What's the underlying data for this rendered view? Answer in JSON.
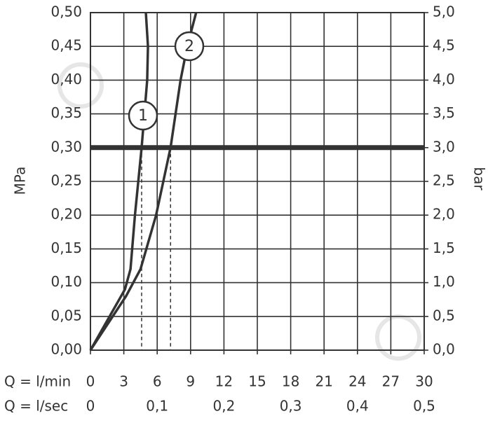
{
  "chart_data": {
    "type": "line",
    "y_label": "MPa",
    "y2_label": "bar",
    "x_label": "Q = l/min",
    "x2_label": "Q = l/sec",
    "xlim": [
      0,
      30
    ],
    "xticks": [
      0,
      3,
      6,
      9,
      12,
      15,
      18,
      21,
      24,
      27,
      30
    ],
    "x2lim": [
      0,
      0.5
    ],
    "x2ticks": [
      0,
      {
        "value": 0.1,
        "label": "0,1"
      },
      {
        "value": 0.2,
        "label": "0,2"
      },
      {
        "value": 0.3,
        "label": "0,3"
      },
      {
        "value": 0.4,
        "label": "0,4"
      },
      {
        "value": 0.5,
        "label": "0,5"
      }
    ],
    "ylim": [
      0,
      0.5
    ],
    "yticks": [
      {
        "value": 0,
        "label": "0,00"
      },
      {
        "value": 0.05,
        "label": "0,05"
      },
      {
        "value": 0.1,
        "label": "0,10"
      },
      {
        "value": 0.15,
        "label": "0,15"
      },
      {
        "value": 0.2,
        "label": "0,20"
      },
      {
        "value": 0.25,
        "label": "0,25"
      },
      {
        "value": 0.3,
        "label": "0,30"
      },
      {
        "value": 0.35,
        "label": "0,35"
      },
      {
        "value": 0.4,
        "label": "0,40"
      },
      {
        "value": 0.45,
        "label": "0,45"
      },
      {
        "value": 0.5,
        "label": "0,50"
      }
    ],
    "y2lim": [
      0,
      5
    ],
    "y2ticks": [
      {
        "value": 0,
        "label": "0,0"
      },
      {
        "value": 0.5,
        "label": "0,5"
      },
      {
        "value": 1,
        "label": "1,0"
      },
      {
        "value": 1.5,
        "label": "1,5"
      },
      {
        "value": 2,
        "label": "2,0"
      },
      {
        "value": 2.5,
        "label": "2,5"
      },
      {
        "value": 3,
        "label": "3,0"
      },
      {
        "value": 3.5,
        "label": "3,5"
      },
      {
        "value": 4,
        "label": "4,0"
      },
      {
        "value": 4.5,
        "label": "4,5"
      },
      {
        "value": 5,
        "label": "5,0"
      }
    ],
    "grid": true,
    "hline": 0.3,
    "series": [
      {
        "name": "1",
        "color": "#333333",
        "x": [
          0,
          3.1,
          3.6,
          4.0,
          4.6,
          4.85,
          5.1,
          5.17,
          4.98
        ],
        "values": [
          0,
          0.09,
          0.12,
          0.2,
          0.3,
          0.35,
          0.4,
          0.45,
          0.5
        ]
      },
      {
        "name": "2",
        "color": "#333333",
        "x": [
          0,
          3.2,
          4.5,
          5.9,
          7.2,
          8.1,
          8.7,
          9.5
        ],
        "values": [
          0,
          0.08,
          0.12,
          0.2,
          0.3,
          0.4,
          0.45,
          0.5
        ]
      }
    ]
  }
}
